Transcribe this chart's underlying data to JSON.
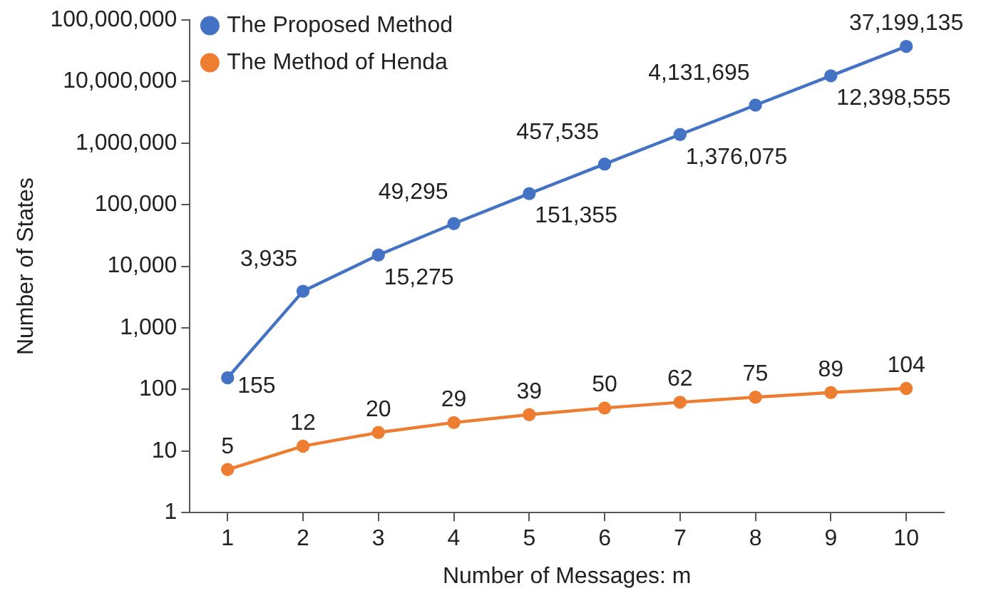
{
  "chart_data": {
    "type": "line",
    "xlabel": "Number of Messages: m",
    "ylabel": "Number of States",
    "categories": [
      "1",
      "2",
      "3",
      "4",
      "5",
      "6",
      "7",
      "8",
      "9",
      "10"
    ],
    "series": [
      {
        "name": "The Proposed Method",
        "color": "#4472c4",
        "values": [
          155,
          3935,
          15275,
          49295,
          151355,
          457535,
          1376075,
          4131695,
          12398555,
          37199135
        ],
        "value_labels": [
          "155",
          "3,935",
          "15,275",
          "49,295",
          "151,355",
          "457,535",
          "1,376,075",
          "4,131,695",
          "12,398,555",
          "37,199,135"
        ]
      },
      {
        "name": "The Method of Henda",
        "color": "#ed7d31",
        "values": [
          5,
          12,
          20,
          29,
          39,
          50,
          62,
          75,
          89,
          104
        ],
        "value_labels": [
          "5",
          "12",
          "20",
          "29",
          "39",
          "50",
          "62",
          "75",
          "89",
          "104"
        ]
      }
    ],
    "log": "y",
    "ylim": [
      1,
      100000000
    ],
    "yticks": [
      1,
      10,
      100,
      {
        "value": 1000,
        "label": "1,000"
      },
      {
        "value": 10000,
        "label": "10,000"
      },
      {
        "value": 100000,
        "label": "100,000"
      },
      {
        "value": 1000000,
        "label": "1,000,000"
      },
      {
        "value": 10000000,
        "label": "10,000,000"
      },
      {
        "value": 100000000,
        "label": "100,000,000"
      }
    ],
    "grid": false,
    "legend": "top left",
    "marker": "circle",
    "line_style": "solid"
  }
}
